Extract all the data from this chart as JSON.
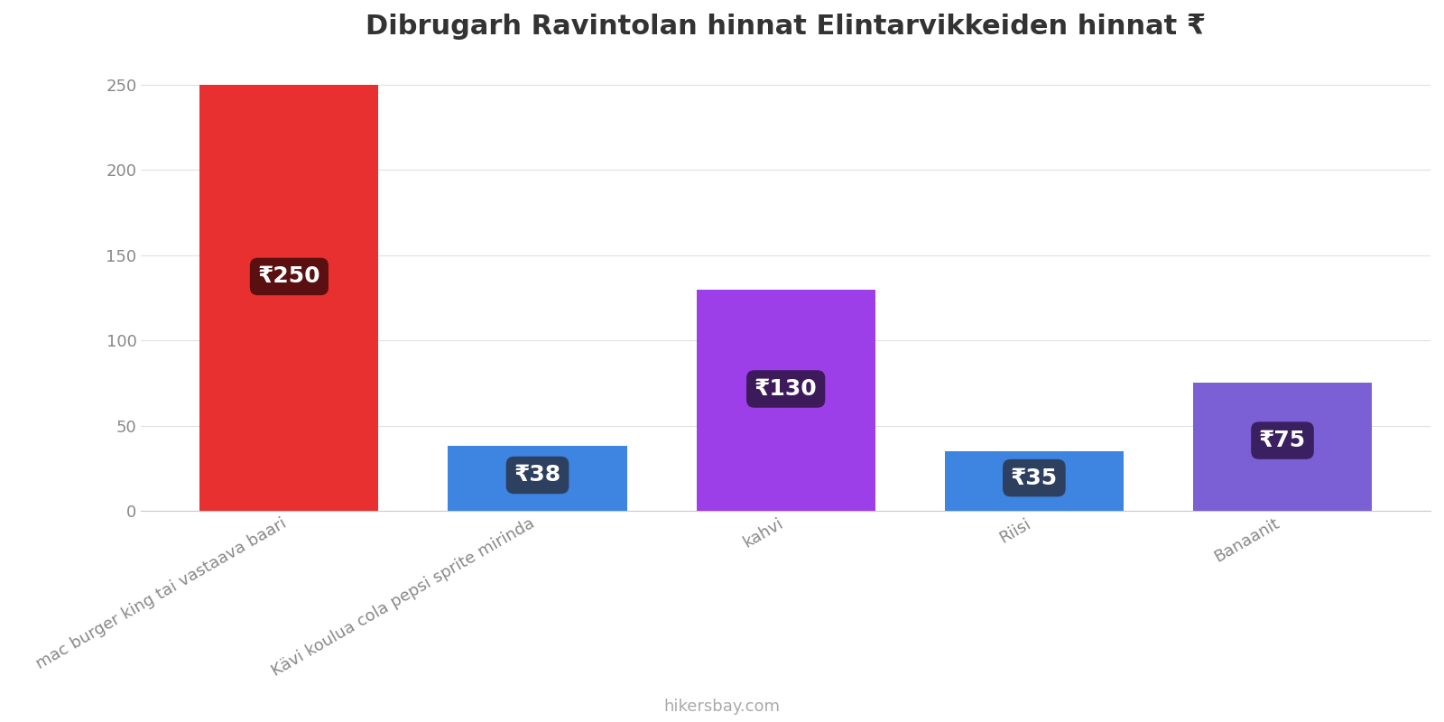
{
  "title": "Dibrugarh Ravintolan hinnat Elintarvikkeiden hinnat ₹",
  "categories": [
    "mac burger king tai vastaava baari",
    "Kävi koulua cola pepsi sprite mirinda",
    "kahvi",
    "Riisi",
    "Banaanit"
  ],
  "values": [
    250,
    38,
    130,
    35,
    75
  ],
  "bar_colors": [
    "#e83030",
    "#3d85e0",
    "#9c3fe8",
    "#3d85e0",
    "#7b5fd4"
  ],
  "label_bg_colors": [
    "#5a1010",
    "#2e4060",
    "#3d1a5a",
    "#2e4060",
    "#3a2060"
  ],
  "ylabel_values": [
    0,
    50,
    100,
    150,
    200,
    250
  ],
  "ylim": [
    0,
    265
  ],
  "footer": "hikersbay.com",
  "background_color": "#ffffff",
  "label_prefix": "₹",
  "bar_width": 0.72,
  "label_fontsize": 18,
  "title_fontsize": 22,
  "tick_fontsize": 13
}
